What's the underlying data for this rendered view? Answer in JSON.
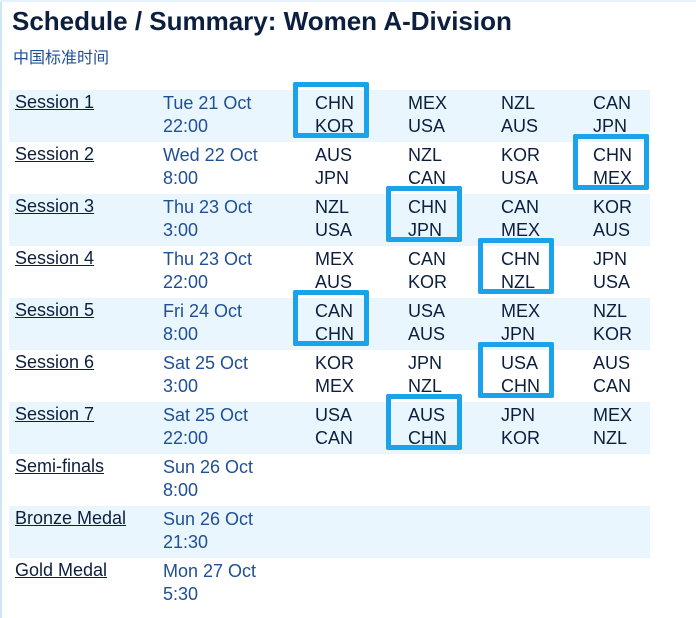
{
  "title": "Schedule / Summary: Women A-Division",
  "timezone": "中国标准时间",
  "sessions": [
    {
      "name": "Session 1",
      "date": "Tue 21 Oct",
      "time": "22:00",
      "matches": [
        [
          "CHN",
          "KOR"
        ],
        [
          "MEX",
          "USA"
        ],
        [
          "NZL",
          "AUS"
        ],
        [
          "CAN",
          "JPN"
        ]
      ],
      "highlight": 0
    },
    {
      "name": "Session 2",
      "date": "Wed 22 Oct",
      "time": "8:00",
      "matches": [
        [
          "AUS",
          "JPN"
        ],
        [
          "NZL",
          "CAN"
        ],
        [
          "KOR",
          "USA"
        ],
        [
          "CHN",
          "MEX"
        ]
      ],
      "highlight": 3
    },
    {
      "name": "Session 3",
      "date": "Thu 23 Oct",
      "time": "3:00",
      "matches": [
        [
          "NZL",
          "USA"
        ],
        [
          "CHN",
          "JPN"
        ],
        [
          "CAN",
          "MEX"
        ],
        [
          "KOR",
          "AUS"
        ]
      ],
      "highlight": 1
    },
    {
      "name": "Session 4",
      "date": "Thu 23 Oct",
      "time": "22:00",
      "matches": [
        [
          "MEX",
          "AUS"
        ],
        [
          "CAN",
          "KOR"
        ],
        [
          "CHN",
          "NZL"
        ],
        [
          "JPN",
          "USA"
        ]
      ],
      "highlight": 2
    },
    {
      "name": "Session 5",
      "date": "Fri 24 Oct",
      "time": "8:00",
      "matches": [
        [
          "CAN",
          "CHN"
        ],
        [
          "USA",
          "AUS"
        ],
        [
          "MEX",
          "JPN"
        ],
        [
          "NZL",
          "KOR"
        ]
      ],
      "highlight": 0
    },
    {
      "name": "Session 6",
      "date": "Sat 25 Oct",
      "time": "3:00",
      "matches": [
        [
          "KOR",
          "MEX"
        ],
        [
          "JPN",
          "NZL"
        ],
        [
          "USA",
          "CHN"
        ],
        [
          "AUS",
          "CAN"
        ]
      ],
      "highlight": 2
    },
    {
      "name": "Session 7",
      "date": "Sat 25 Oct",
      "time": "22:00",
      "matches": [
        [
          "USA",
          "CAN"
        ],
        [
          "AUS",
          "CHN"
        ],
        [
          "JPN",
          "KOR"
        ],
        [
          "MEX",
          "NZL"
        ]
      ],
      "highlight": 1
    },
    {
      "name": "Semi-finals",
      "date": "Sun 26 Oct",
      "time": "8:00",
      "matches": []
    },
    {
      "name": "Bronze Medal",
      "date": "Sun 26 Oct",
      "time": "21:30",
      "matches": []
    },
    {
      "name": "Gold Medal",
      "date": "Mon 27 Oct",
      "time": "5:30",
      "matches": []
    }
  ],
  "colors": {
    "highlight": "#1aa3ea",
    "row_shade": "#eaf6fd",
    "title": "#0c1f3f",
    "date": "#1f4f96"
  }
}
